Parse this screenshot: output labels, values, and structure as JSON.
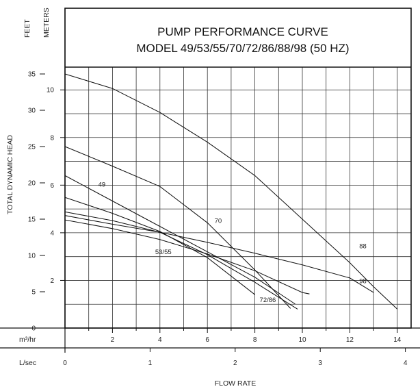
{
  "chart_data": {
    "type": "line",
    "title": "PUMP PERFORMANCE CURVE",
    "subtitle": "MODEL 49/53/55/70/72/86/88/98 (50 HZ)",
    "ylabel": "TOTAL DYNAMIC HEAD",
    "xlabel": "FLOW RATE",
    "y_units": {
      "feet": "FEET",
      "meters": "METERS"
    },
    "x_units": {
      "m3hr": "m³/hr",
      "lsec": "L/sec"
    },
    "ylim_feet": [
      0,
      36.1
    ],
    "xlim_m3hr": [
      0,
      14.5
    ],
    "feet_ticks": [
      "0",
      "5",
      "10",
      "15",
      "20",
      "25",
      "30",
      "35"
    ],
    "meter_ticks": [
      "2",
      "4",
      "6",
      "8",
      "10"
    ],
    "m3hr_ticks": [
      "2",
      "4",
      "6",
      "8",
      "10",
      "12",
      "14"
    ],
    "lsec_ticks": [
      "0",
      "1",
      "2",
      "3",
      "4"
    ],
    "grid": true,
    "series": [
      {
        "name": "88",
        "x": [
          0,
          2,
          4,
          6,
          8,
          10,
          12,
          13,
          14
        ],
        "y": [
          35,
          33,
          29.7,
          25.6,
          21,
          15,
          9,
          5.7,
          2.6
        ]
      },
      {
        "name": "49",
        "x": [
          0,
          2,
          4,
          6,
          8,
          9.5
        ],
        "y": [
          25,
          22.3,
          19.5,
          14.5,
          8,
          2.7
        ]
      },
      {
        "name": "70",
        "x": [
          0,
          2,
          4,
          6,
          8,
          9.7
        ],
        "y": [
          21,
          17.5,
          14,
          10.5,
          7,
          3.3
        ]
      },
      {
        "name": "53/55",
        "x": [
          0,
          2,
          4,
          6,
          8
        ],
        "y": [
          18,
          15.8,
          13.3,
          9.7,
          4.6
        ]
      },
      {
        "name": "72/86",
        "x": [
          0,
          2,
          4,
          6,
          8,
          9.8
        ],
        "y": [
          16,
          14.8,
          13.2,
          10.1,
          6.3,
          2.6
        ]
      },
      {
        "name": "98",
        "x": [
          0,
          2,
          4,
          6,
          8,
          10,
          12,
          13
        ],
        "y": [
          15.5,
          14.3,
          13.2,
          11.8,
          10.3,
          8.7,
          6.9,
          4.9
        ]
      },
      {
        "name": "",
        "x": [
          0,
          2,
          4,
          6,
          8,
          10,
          10.3
        ],
        "y": [
          14.9,
          13.7,
          12.2,
          10.2,
          7.9,
          4.9,
          4.7
        ]
      }
    ]
  }
}
